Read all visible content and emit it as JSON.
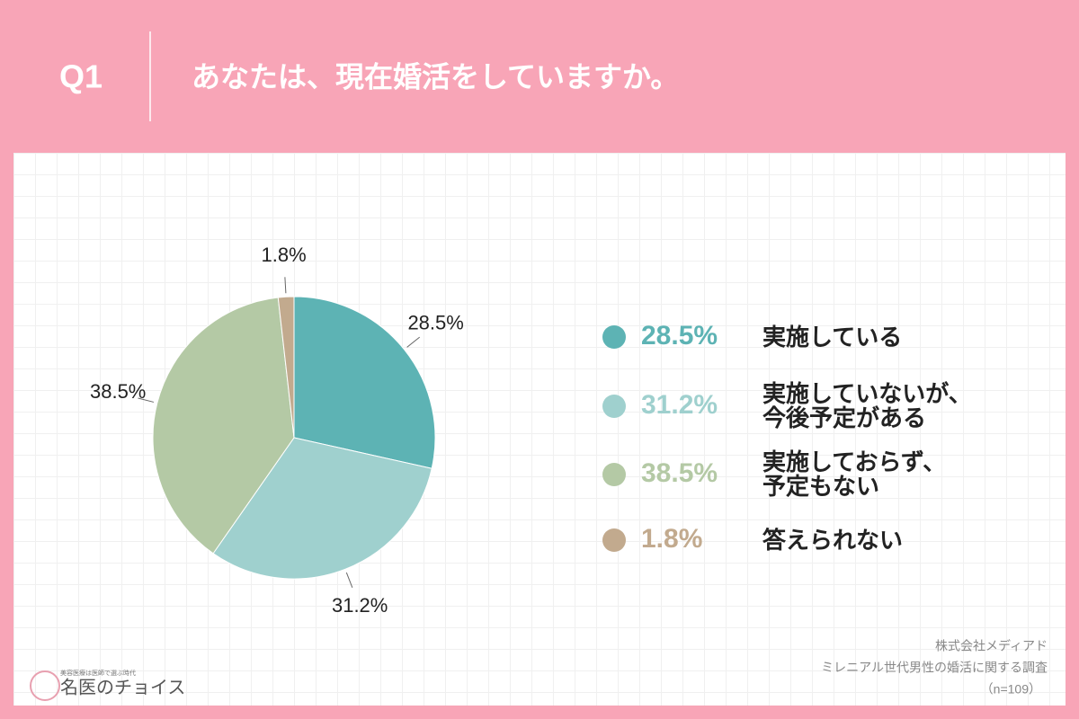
{
  "header": {
    "number": "Q1",
    "question": "あなたは、現在婚活をしていますか。"
  },
  "chart_data": {
    "type": "pie",
    "categories": [
      "実施している",
      "実施していないが、\n今後予定がある",
      "実施しておらず、\n予定もない",
      "答えられない"
    ],
    "values": [
      28.5,
      31.2,
      38.5,
      1.8
    ],
    "value_labels": [
      "28.5%",
      "31.2%",
      "38.5%",
      "1.8%"
    ],
    "colors": [
      "#5db3b4",
      "#9fd0ce",
      "#b4c9a5",
      "#c2aa8e"
    ]
  },
  "footer": {
    "company": "株式会社メディアド",
    "survey": "ミレニアル世代男性の婚活に関する調査",
    "sample": "（n=109）"
  },
  "logo": {
    "tagline": "美容医療は医師で選ぶ時代",
    "name": "名医のチョイス"
  }
}
